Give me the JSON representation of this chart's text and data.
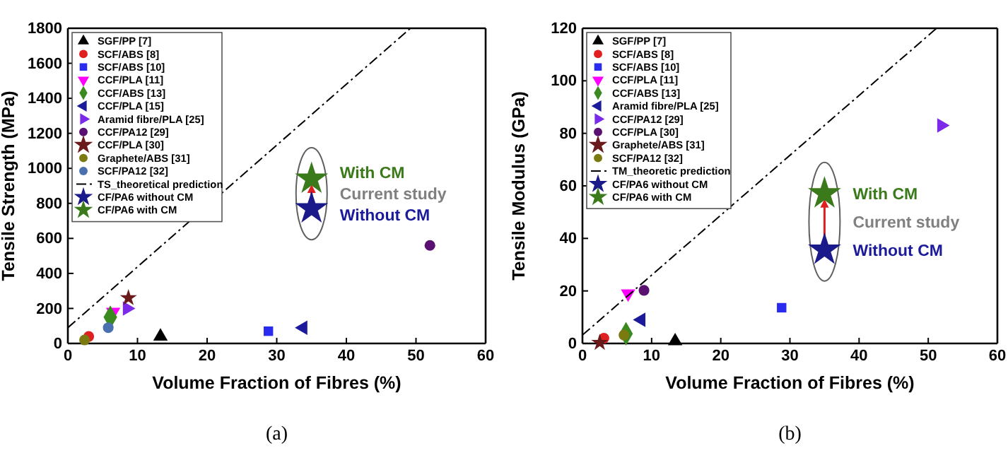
{
  "chart_data": [
    {
      "type": "scatter",
      "xlabel": "Volume Fraction of Fibres (%)",
      "ylabel": "Tensile Strength (MPa)",
      "xlim": [
        0,
        60
      ],
      "xticks": [
        0,
        10,
        20,
        30,
        40,
        50,
        60
      ],
      "ylim": [
        0,
        1800
      ],
      "yticks": [
        0,
        200,
        400,
        600,
        800,
        1000,
        1200,
        1400,
        1600,
        1800
      ],
      "grid": false,
      "legend": "top left",
      "series": [
        {
          "name": "SGF/PP [7]",
          "color": "#000000",
          "marker": "triangle",
          "x": [
            13.3
          ],
          "values": [
            40
          ]
        },
        {
          "name": "SCF/ABS [8]",
          "color": "#e02020",
          "marker": "circle",
          "x": [
            3.0
          ],
          "values": [
            40
          ]
        },
        {
          "name": "SCF/ABS [10]",
          "color": "#2b2bf0",
          "marker": "square",
          "x": [
            28.8
          ],
          "values": [
            70
          ]
        },
        {
          "name": "CCF/PLA [11]",
          "color": "#ff00ff",
          "marker": "triangle-down",
          "x": [
            6.5
          ],
          "values": [
            180
          ]
        },
        {
          "name": "CCF/ABS [13]",
          "color": "#3a8a20",
          "marker": "diamond",
          "x": [
            6.1
          ],
          "values": [
            150
          ]
        },
        {
          "name": "CCF/PLA [15]",
          "color": "#1a1a9a",
          "marker": "triangle-left",
          "x": [
            33.8
          ],
          "values": [
            90
          ]
        },
        {
          "name": "Aramid fibre/PLA [25]",
          "color": "#7a2ae8",
          "marker": "triangle-right",
          "x": [
            8.5
          ],
          "values": [
            200
          ]
        },
        {
          "name": "CCF/PA12 [29]",
          "color": "#5a1070",
          "marker": "circle",
          "x": [
            52.0
          ],
          "values": [
            560
          ]
        },
        {
          "name": "CCF/PLA [30]",
          "color": "#6a1a1a",
          "marker": "star",
          "x": [
            8.7
          ],
          "values": [
            260
          ]
        },
        {
          "name": "Graphete/ABS [31]",
          "color": "#7a7a10",
          "marker": "circle",
          "x": [
            2.4
          ],
          "values": [
            20
          ]
        },
        {
          "name": "SCF/PA12 [32]",
          "color": "#4a70b0",
          "marker": "circle",
          "x": [
            5.8
          ],
          "values": [
            90
          ]
        },
        {
          "name": "TS_theoretical prediction",
          "type": "line",
          "color": "#000000",
          "line_style": "dashed",
          "x": [
            0,
            49.2
          ],
          "values": [
            90,
            1800
          ]
        },
        {
          "name": "CF/PA6 without CM",
          "color": "#1a1a8a",
          "marker": "star",
          "x": [
            35.0
          ],
          "values": [
            770
          ]
        },
        {
          "name": "CF/PA6 with CM",
          "color": "#3a7a1a",
          "marker": "star",
          "x": [
            35.0
          ],
          "values": [
            940
          ]
        }
      ],
      "annotations": [
        "With CM",
        "Current study",
        "Without CM",
        "(a)"
      ]
    },
    {
      "type": "scatter",
      "xlabel": "Volume Fraction of Fibres (%)",
      "ylabel": "Tensile Modulus (GPa)",
      "xlim": [
        0,
        60
      ],
      "xticks": [
        0,
        10,
        20,
        30,
        40,
        50,
        60
      ],
      "ylim": [
        0,
        120
      ],
      "yticks": [
        0,
        20,
        40,
        60,
        80,
        100,
        120
      ],
      "grid": false,
      "legend": "top left",
      "series": [
        {
          "name": "SGF/PP [7]",
          "color": "#000000",
          "marker": "triangle",
          "x": [
            13.4
          ],
          "values": [
            0.9
          ]
        },
        {
          "name": "SCF/ABS [8]",
          "color": "#e02020",
          "marker": "circle",
          "x": [
            3.1
          ],
          "values": [
            2.0
          ]
        },
        {
          "name": "SCF/ABS [10]",
          "color": "#2b2bf0",
          "marker": "square",
          "x": [
            28.8
          ],
          "values": [
            13.6
          ]
        },
        {
          "name": "CCF/PLA [11]",
          "color": "#ff00ff",
          "marker": "triangle-down",
          "x": [
            6.6
          ],
          "values": [
            19
          ]
        },
        {
          "name": "CCF/ABS [13]",
          "color": "#3a8a20",
          "marker": "diamond",
          "x": [
            6.3
          ],
          "values": [
            3.7
          ]
        },
        {
          "name": "Aramid fibre/PLA [25]",
          "color": "#1a1a9a",
          "marker": "triangle-left",
          "x": [
            8.5
          ],
          "values": [
            9
          ]
        },
        {
          "name": "CCF/PA12 [29]",
          "color": "#7a2ae8",
          "marker": "triangle-right",
          "x": [
            51.9
          ],
          "values": [
            83
          ]
        },
        {
          "name": "CCF/PLA [30]",
          "color": "#5a1070",
          "marker": "circle",
          "x": [
            8.9
          ],
          "values": [
            20.2
          ]
        },
        {
          "name": "Graphete/ABS [31]",
          "color": "#6a1a1a",
          "marker": "star",
          "x": [
            2.5
          ],
          "values": [
            0.3
          ]
        },
        {
          "name": "SCF/PA12 [32]",
          "color": "#7a7a10",
          "marker": "circle",
          "x": [
            6.0
          ],
          "values": [
            3.2
          ]
        },
        {
          "name": "TM_theoretic prediction",
          "type": "line",
          "color": "#000000",
          "line_style": "dashed",
          "x": [
            0,
            51.2
          ],
          "values": [
            3.2,
            120
          ]
        },
        {
          "name": "CF/PA6 without CM",
          "color": "#1a1a8a",
          "marker": "star",
          "x": [
            35.0
          ],
          "values": [
            35.6
          ]
        },
        {
          "name": "CF/PA6 with CM",
          "color": "#3a7a1a",
          "marker": "star",
          "x": [
            35.0
          ],
          "values": [
            57.1
          ]
        }
      ],
      "annotations": [
        "With CM",
        "Current study",
        "Without CM",
        "(b)"
      ]
    }
  ]
}
